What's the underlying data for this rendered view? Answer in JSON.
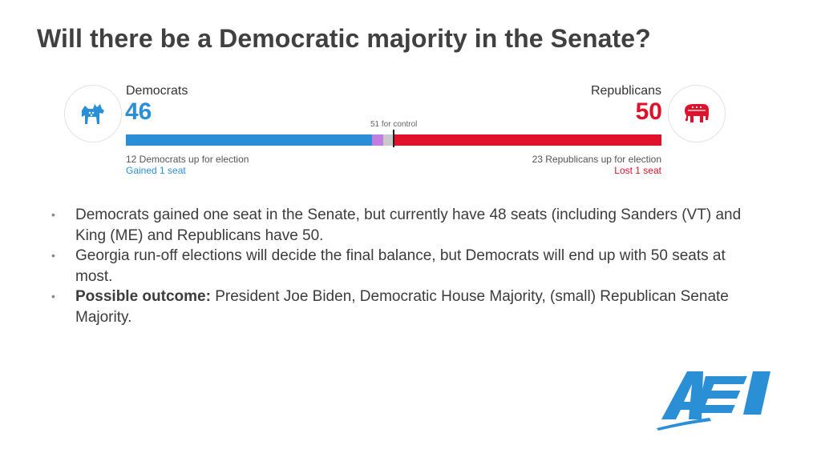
{
  "slide": {
    "title": "Will there be a Democratic majority in the Senate?"
  },
  "senate": {
    "democrats": {
      "name": "Democrats",
      "seats": "46",
      "up_for_election": "12 Democrats up for election",
      "change": "Gained 1 seat",
      "color": "#2b8fd6",
      "icon": "donkey-icon"
    },
    "republicans": {
      "name": "Republicans",
      "seats": "50",
      "up_for_election": "23 Republicans up for election",
      "change": "Lost 1 seat",
      "color": "#e0112b",
      "icon": "elephant-icon"
    },
    "control_label": "51 for control",
    "bar": {
      "total": 100,
      "segments": [
        {
          "party": "democrats",
          "seats": 46,
          "color": "#2b8fd6"
        },
        {
          "party": "independents",
          "seats": 2,
          "color": "#c27de0"
        },
        {
          "party": "undecided",
          "seats": 2,
          "color": "#c9c9c9"
        },
        {
          "party": "republicans",
          "seats": 50,
          "color": "#e0112b"
        }
      ]
    }
  },
  "bullets": [
    {
      "bold": "",
      "text": "Democrats gained one seat in the Senate, but currently have 48 seats (including Sanders (VT) and King (ME) and Republicans have 50."
    },
    {
      "bold": "",
      "text": "Georgia run-off elections will decide the final balance, but Democrats will end up with 50 seats at most."
    },
    {
      "bold": "Possible outcome:",
      "text": " President Joe Biden, Democratic House Majority, (small) Republican Senate Majority."
    }
  ],
  "logo": {
    "text": "AEI",
    "color": "#2b8fd6"
  }
}
